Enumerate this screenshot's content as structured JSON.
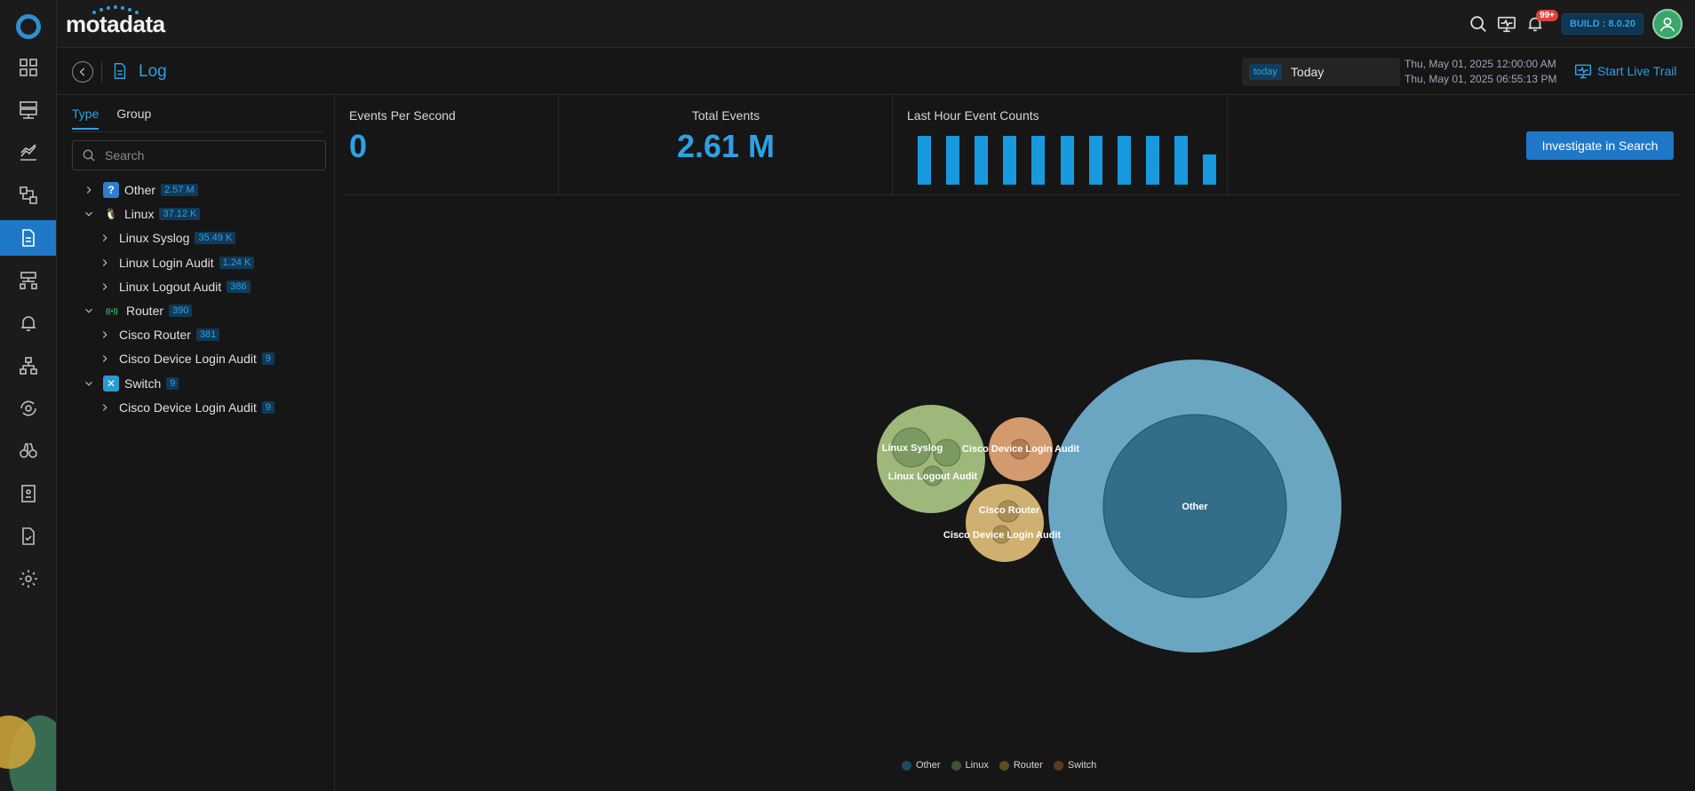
{
  "brand": {
    "name": "motadata"
  },
  "topbar": {
    "notifications_badge": "99+",
    "build": "BUILD : 8.0.20"
  },
  "page": {
    "title": "Log"
  },
  "date": {
    "chip": "today",
    "value": "Today",
    "from": "Thu, May 01, 2025 12:00:00 AM",
    "to": "Thu, May 01, 2025 06:55:13 PM"
  },
  "live_trail": "Start Live Trail",
  "side": {
    "tabs": [
      "Type",
      "Group"
    ],
    "search_placeholder": "Search",
    "tree": [
      {
        "label": "Other",
        "count": "2.57 M",
        "level": 0,
        "expanded": false,
        "icon": "question-icon"
      },
      {
        "label": "Linux",
        "count": "37.12 K",
        "level": 0,
        "expanded": true,
        "icon": "linux-icon"
      },
      {
        "label": "Linux Syslog",
        "count": "35.49 K",
        "level": 1,
        "expanded": false
      },
      {
        "label": "Linux Login Audit",
        "count": "1.24 K",
        "level": 1,
        "expanded": false
      },
      {
        "label": "Linux Logout Audit",
        "count": "386",
        "level": 1,
        "expanded": false
      },
      {
        "label": "Router",
        "count": "390",
        "level": 0,
        "expanded": true,
        "icon": "router-icon"
      },
      {
        "label": "Cisco Router",
        "count": "381",
        "level": 1,
        "expanded": false
      },
      {
        "label": "Cisco Device Login Audit",
        "count": "9",
        "level": 1,
        "expanded": false
      },
      {
        "label": "Switch",
        "count": "9",
        "level": 0,
        "expanded": true,
        "icon": "switch-icon"
      },
      {
        "label": "Cisco Device Login Audit",
        "count": "9",
        "level": 1,
        "expanded": false
      }
    ]
  },
  "stats": {
    "eps_label": "Events Per Second",
    "eps_value": "0",
    "total_label": "Total Events",
    "total_value": "2.61 M",
    "last_hour_label": "Last Hour Event Counts"
  },
  "investigate": "Investigate in Search",
  "chart_data": {
    "type": "bar",
    "title": "Last Hour Event Counts",
    "values": [
      100,
      100,
      100,
      100,
      100,
      100,
      100,
      100,
      100,
      100,
      62
    ],
    "ylim": [
      0,
      100
    ]
  },
  "bubble_chart": {
    "type": "bubble",
    "groups": [
      {
        "name": "Other",
        "color": "#6aa6c2",
        "children": [
          {
            "name": "Other"
          }
        ]
      },
      {
        "name": "Linux",
        "color": "#9db87a",
        "children": [
          {
            "name": "Linux Syslog"
          },
          {
            "name": "Linux Logout Audit"
          },
          {
            "name": "Linux Login Audit"
          }
        ]
      },
      {
        "name": "Router",
        "color": "#cfb070",
        "children": [
          {
            "name": "Cisco Router"
          },
          {
            "name": "Cisco Device Login Audit"
          }
        ]
      },
      {
        "name": "Switch",
        "color": "#d29a6d",
        "children": [
          {
            "name": "Cisco Device Login Audit"
          }
        ]
      }
    ],
    "legend": [
      {
        "label": "Other",
        "color": "#1d4b63"
      },
      {
        "label": "Linux",
        "color": "#3e5530"
      },
      {
        "label": "Router",
        "color": "#5e4c22"
      },
      {
        "label": "Switch",
        "color": "#5b3a20"
      }
    ]
  },
  "colors": {
    "accent": "#2ea0e6",
    "primary_button": "#1f77c8",
    "background": "#161616"
  }
}
